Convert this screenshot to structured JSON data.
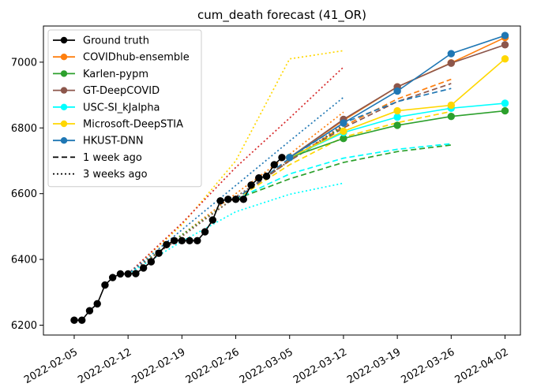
{
  "chart_data": {
    "type": "line",
    "title": "cum_death forecast (41_OR)",
    "xlabel": "",
    "ylabel": "",
    "x_ticks": [
      "2022-02-05",
      "2022-02-12",
      "2022-02-19",
      "2022-02-26",
      "2022-03-05",
      "2022-03-12",
      "2022-03-19",
      "2022-03-26",
      "2022-04-02"
    ],
    "y_ticks": [
      "6200",
      "6400",
      "6600",
      "6800",
      "7000"
    ],
    "xlim": [
      "2022-02-01",
      "2022-04-04"
    ],
    "ylim": [
      6170,
      7110
    ],
    "grid": false,
    "legend_position": "top-left",
    "series": [
      {
        "name": "Ground truth",
        "color": "#000000",
        "style": "solid",
        "marker": true,
        "x": [
          "2022-02-05",
          "2022-02-06",
          "2022-02-07",
          "2022-02-08",
          "2022-02-09",
          "2022-02-10",
          "2022-02-11",
          "2022-02-12",
          "2022-02-13",
          "2022-02-14",
          "2022-02-15",
          "2022-02-16",
          "2022-02-17",
          "2022-02-18",
          "2022-02-19",
          "2022-02-20",
          "2022-02-21",
          "2022-02-22",
          "2022-02-23",
          "2022-02-24",
          "2022-02-25",
          "2022-02-26",
          "2022-02-27",
          "2022-02-28",
          "2022-03-01",
          "2022-03-02",
          "2022-03-03",
          "2022-03-04"
        ],
        "y": [
          6215,
          6215,
          6244,
          6265,
          6322,
          6345,
          6356,
          6356,
          6357,
          6374,
          6393,
          6419,
          6445,
          6457,
          6457,
          6457,
          6457,
          6484,
          6520,
          6578,
          6583,
          6583,
          6583,
          6626,
          6648,
          6653,
          6688,
          6710
        ]
      },
      {
        "name": "COVIDhub-ensemble",
        "color": "#ff7f0e",
        "style": "solid",
        "marker": true,
        "x": [
          "2022-03-05",
          "2022-03-12",
          "2022-03-19",
          "2022-03-26",
          "2022-04-02"
        ],
        "y": [
          6710,
          6823,
          6925,
          6998,
          7075
        ]
      },
      {
        "name": "Karlen-pypm",
        "color": "#2ca02c",
        "style": "solid",
        "marker": true,
        "x": [
          "2022-03-05",
          "2022-03-12",
          "2022-03-19",
          "2022-03-26",
          "2022-04-02"
        ],
        "y": [
          6710,
          6768,
          6808,
          6835,
          6852
        ]
      },
      {
        "name": "GT-DeepCOVID",
        "color": "#8c564b",
        "style": "solid",
        "marker": true,
        "x": [
          "2022-03-05",
          "2022-03-12",
          "2022-03-19",
          "2022-03-26",
          "2022-04-02"
        ],
        "y": [
          6710,
          6826,
          6925,
          6997,
          7053
        ]
      },
      {
        "name": "USC-SI_kJalpha",
        "color": "#00ffff",
        "style": "solid",
        "marker": true,
        "x": [
          "2022-03-05",
          "2022-03-12",
          "2022-03-19",
          "2022-03-26",
          "2022-04-02"
        ],
        "y": [
          6710,
          6786,
          6833,
          6860,
          6875
        ]
      },
      {
        "name": "Microsoft-DeepSTIA",
        "color": "#ffd700",
        "style": "solid",
        "marker": true,
        "x": [
          "2022-03-05",
          "2022-03-12",
          "2022-03-19",
          "2022-03-26",
          "2022-04-02"
        ],
        "y": [
          6710,
          6790,
          6852,
          6869,
          7010
        ]
      },
      {
        "name": "HKUST-DNN",
        "color": "#1f77b4",
        "style": "solid",
        "marker": true,
        "x": [
          "2022-03-05",
          "2022-03-12",
          "2022-03-19",
          "2022-03-26",
          "2022-04-02"
        ],
        "y": [
          6710,
          6815,
          6912,
          7026,
          7081
        ]
      },
      {
        "name": "",
        "color": "#ff7f0e",
        "style": "dashed",
        "marker": false,
        "x": [
          "2022-02-26",
          "2022-03-05",
          "2022-03-12",
          "2022-03-19",
          "2022-03-26"
        ],
        "y": [
          6583,
          6703,
          6805,
          6888,
          6948
        ]
      },
      {
        "name": "",
        "color": "#2ca02c",
        "style": "dashed",
        "marker": false,
        "x": [
          "2022-02-26",
          "2022-03-05",
          "2022-03-12",
          "2022-03-19",
          "2022-03-26"
        ],
        "y": [
          6583,
          6645,
          6695,
          6728,
          6748
        ]
      },
      {
        "name": "",
        "color": "#8c564b",
        "style": "dashed",
        "marker": false,
        "x": [
          "2022-02-26",
          "2022-03-05",
          "2022-03-12",
          "2022-03-19",
          "2022-03-26"
        ],
        "y": [
          6583,
          6700,
          6800,
          6880,
          6935
        ]
      },
      {
        "name": "",
        "color": "#00ffff",
        "style": "dashed",
        "marker": false,
        "x": [
          "2022-02-26",
          "2022-03-05",
          "2022-03-12",
          "2022-03-19",
          "2022-03-26"
        ],
        "y": [
          6583,
          6660,
          6708,
          6735,
          6752
        ]
      },
      {
        "name": "",
        "color": "#ffd700",
        "style": "dashed",
        "marker": false,
        "x": [
          "2022-02-26",
          "2022-03-05",
          "2022-03-12",
          "2022-03-19",
          "2022-03-26"
        ],
        "y": [
          6583,
          6688,
          6772,
          6816,
          6850
        ]
      },
      {
        "name": "",
        "color": "#1f77b4",
        "style": "dashed",
        "marker": false,
        "x": [
          "2022-02-26",
          "2022-03-05",
          "2022-03-12",
          "2022-03-19",
          "2022-03-26"
        ],
        "y": [
          6583,
          6708,
          6815,
          6880,
          6920
        ]
      },
      {
        "name": "",
        "color": "#ff7f0e",
        "style": "dotted",
        "marker": false,
        "x": [
          "2022-02-12",
          "2022-02-19",
          "2022-02-26",
          "2022-03-05",
          "2022-03-12"
        ],
        "y": [
          6356,
          6475,
          6600,
          6720,
          6848
        ]
      },
      {
        "name": "",
        "color": "#2ca02c",
        "style": "dotted",
        "marker": false,
        "x": [
          "2022-02-12",
          "2022-02-19",
          "2022-02-26",
          "2022-03-05",
          "2022-03-12"
        ],
        "y": [
          6356,
          6475,
          6590,
          6700,
          6805
        ]
      },
      {
        "name": "",
        "color": "#8c564b",
        "style": "dotted",
        "marker": false,
        "x": [
          "2022-02-12",
          "2022-02-19",
          "2022-02-26",
          "2022-03-05",
          "2022-03-12"
        ],
        "y": [
          6356,
          6470,
          6590,
          6700,
          6810
        ]
      },
      {
        "name": "",
        "color": "#00ffff",
        "style": "dotted",
        "marker": false,
        "x": [
          "2022-02-12",
          "2022-02-19",
          "2022-02-26",
          "2022-03-05",
          "2022-03-12"
        ],
        "y": [
          6356,
          6455,
          6545,
          6598,
          6632
        ]
      },
      {
        "name": "",
        "color": "#ffd700",
        "style": "dotted",
        "marker": false,
        "x": [
          "2022-02-12",
          "2022-02-19",
          "2022-02-26",
          "2022-03-05",
          "2022-03-12"
        ],
        "y": [
          6356,
          6505,
          6700,
          7010,
          7035
        ]
      },
      {
        "name": "",
        "color": "#d62728",
        "style": "dotted",
        "marker": false,
        "x": [
          "2022-02-12",
          "2022-02-19",
          "2022-02-26",
          "2022-03-05",
          "2022-03-12"
        ],
        "y": [
          6356,
          6510,
          6680,
          6830,
          6985
        ]
      },
      {
        "name": "",
        "color": "#1f77b4",
        "style": "dotted",
        "marker": false,
        "x": [
          "2022-02-12",
          "2022-02-19",
          "2022-02-26",
          "2022-03-05",
          "2022-03-12"
        ],
        "y": [
          6356,
          6490,
          6625,
          6760,
          6893
        ]
      }
    ],
    "legend": [
      {
        "label": "Ground truth",
        "color": "#000000",
        "style": "solid",
        "marker": true
      },
      {
        "label": "COVIDhub-ensemble",
        "color": "#ff7f0e",
        "style": "solid",
        "marker": true
      },
      {
        "label": "Karlen-pypm",
        "color": "#2ca02c",
        "style": "solid",
        "marker": true
      },
      {
        "label": "GT-DeepCOVID",
        "color": "#8c564b",
        "style": "solid",
        "marker": true
      },
      {
        "label": "USC-SI_kJalpha",
        "color": "#00ffff",
        "style": "solid",
        "marker": true
      },
      {
        "label": "Microsoft-DeepSTIA",
        "color": "#ffd700",
        "style": "solid",
        "marker": true
      },
      {
        "label": "HKUST-DNN",
        "color": "#1f77b4",
        "style": "solid",
        "marker": true
      },
      {
        "label": "1 week ago",
        "color": "#000000",
        "style": "dashed",
        "marker": false
      },
      {
        "label": "3 weeks ago",
        "color": "#000000",
        "style": "dotted",
        "marker": false
      }
    ]
  }
}
